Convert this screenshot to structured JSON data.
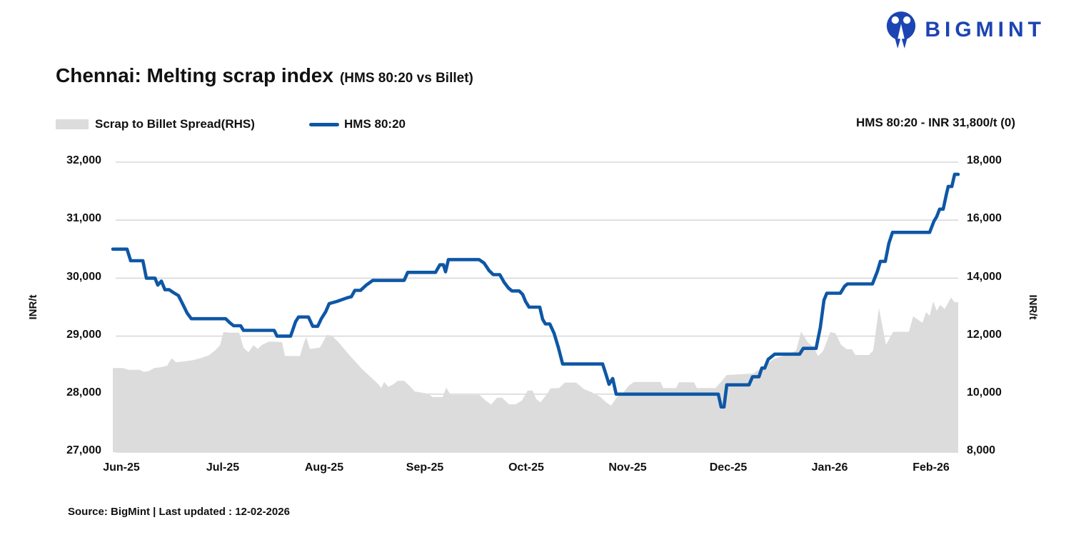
{
  "header": {
    "logo_text": "BIGMINT"
  },
  "title": {
    "main": "Chennai: Melting scrap index",
    "sub": "(HMS 80:20 vs Billet)"
  },
  "legend": {
    "items": [
      {
        "label": "Scrap to Billet Spread(RHS)"
      },
      {
        "label": "HMS 80:20"
      }
    ]
  },
  "annotation": {
    "text": "HMS 80:20 - INR 31,800/t (0)"
  },
  "footer": {
    "text": "Source: BigMint | Last updated : 12-02-2026"
  },
  "colors": {
    "line_blue": "#0e57a5",
    "area_gray": "#dcdcdc",
    "logo_blue": "#1c44b2",
    "gridline": "#d9d9d9"
  },
  "chart_data": {
    "type": "line",
    "title": "Chennai: Melting scrap index (HMS 80:20 vs Billet)",
    "x_axis": {
      "unit": "months_after_Jun-25_tick",
      "tick_labels": [
        "Jun-25",
        "Jul-25",
        "Aug-25",
        "Sep-25",
        "Oct-25",
        "Nov-25",
        "Dec-25",
        "Jan-26",
        "Feb-26"
      ]
    },
    "left_axis": {
      "label": "INR/t",
      "min": 27000,
      "max": 32000,
      "tick_values": [
        32000,
        31000,
        30000,
        29000,
        28000,
        27000
      ],
      "tick_labels": [
        "32,000",
        "31,000",
        "30,000",
        "29,000",
        "28,000",
        "27,000"
      ]
    },
    "right_axis": {
      "label": "INR/t",
      "min": 8000,
      "max": 18000,
      "tick_values": [
        18000,
        16000,
        14000,
        12000,
        10000,
        8000
      ],
      "tick_labels": [
        "18,000",
        "16,000",
        "14,000",
        "12,000",
        "10,000",
        "8,000"
      ]
    },
    "grid": true,
    "legend_position": "top-left",
    "current_value_note": "HMS 80:20 - INR 31,800/t (0)",
    "series": [
      {
        "name": "Scrap to Billet Spread(RHS)",
        "axis": "right",
        "type": "area",
        "color": "#dcdcdc",
        "points": [
          [
            -0.085,
            10900
          ],
          [
            0.014,
            10900
          ],
          [
            0.071,
            10840
          ],
          [
            0.183,
            10840
          ],
          [
            0.219,
            10770
          ],
          [
            0.268,
            10790
          ],
          [
            0.325,
            10900
          ],
          [
            0.395,
            10930
          ],
          [
            0.452,
            10980
          ],
          [
            0.48,
            11150
          ],
          [
            0.501,
            11240
          ],
          [
            0.536,
            11100
          ],
          [
            0.621,
            11130
          ],
          [
            0.706,
            11170
          ],
          [
            0.79,
            11250
          ],
          [
            0.861,
            11330
          ],
          [
            0.924,
            11500
          ],
          [
            0.974,
            11690
          ],
          [
            1.009,
            12140
          ],
          [
            1.072,
            12120
          ],
          [
            1.164,
            12120
          ],
          [
            1.206,
            11600
          ],
          [
            1.256,
            11440
          ],
          [
            1.305,
            11690
          ],
          [
            1.347,
            11560
          ],
          [
            1.39,
            11700
          ],
          [
            1.46,
            11810
          ],
          [
            1.587,
            11800
          ],
          [
            1.616,
            11320
          ],
          [
            1.764,
            11310
          ],
          [
            1.806,
            11800
          ],
          [
            1.827,
            11970
          ],
          [
            1.862,
            11560
          ],
          [
            1.961,
            11600
          ],
          [
            2.032,
            12050
          ],
          [
            2.081,
            12010
          ],
          [
            2.145,
            11790
          ],
          [
            2.257,
            11330
          ],
          [
            2.377,
            10870
          ],
          [
            2.49,
            10500
          ],
          [
            2.54,
            10340
          ],
          [
            2.568,
            10210
          ],
          [
            2.596,
            10420
          ],
          [
            2.638,
            10250
          ],
          [
            2.688,
            10340
          ],
          [
            2.73,
            10460
          ],
          [
            2.794,
            10460
          ],
          [
            2.843,
            10300
          ],
          [
            2.899,
            10090
          ],
          [
            3.026,
            10020
          ],
          [
            3.076,
            9900
          ],
          [
            3.175,
            9900
          ],
          [
            3.21,
            10230
          ],
          [
            3.252,
            9970
          ],
          [
            3.541,
            9970
          ],
          [
            3.605,
            9760
          ],
          [
            3.654,
            9640
          ],
          [
            3.711,
            9880
          ],
          [
            3.76,
            9880
          ],
          [
            3.831,
            9650
          ],
          [
            3.894,
            9650
          ],
          [
            3.958,
            9780
          ],
          [
            4.014,
            10120
          ],
          [
            4.063,
            10120
          ],
          [
            4.099,
            9830
          ],
          [
            4.141,
            9720
          ],
          [
            4.205,
            10000
          ],
          [
            4.24,
            10200
          ],
          [
            4.325,
            10210
          ],
          [
            4.381,
            10400
          ],
          [
            4.494,
            10400
          ],
          [
            4.572,
            10170
          ],
          [
            4.656,
            10050
          ],
          [
            4.734,
            9900
          ],
          [
            4.79,
            9720
          ],
          [
            4.839,
            9600
          ],
          [
            4.896,
            9900
          ],
          [
            4.945,
            10000
          ],
          [
            5.016,
            10300
          ],
          [
            5.065,
            10420
          ],
          [
            5.326,
            10420
          ],
          [
            5.354,
            10210
          ],
          [
            5.481,
            10210
          ],
          [
            5.509,
            10410
          ],
          [
            5.658,
            10410
          ],
          [
            5.686,
            10210
          ],
          [
            5.869,
            10210
          ],
          [
            5.919,
            10400
          ],
          [
            5.982,
            10660
          ],
          [
            6.243,
            10710
          ],
          [
            6.321,
            10900
          ],
          [
            6.455,
            11230
          ],
          [
            6.568,
            11350
          ],
          [
            6.667,
            11500
          ],
          [
            6.716,
            12150
          ],
          [
            6.78,
            11800
          ],
          [
            6.843,
            11600
          ],
          [
            6.885,
            11310
          ],
          [
            6.935,
            11500
          ],
          [
            7.005,
            12140
          ],
          [
            7.055,
            12100
          ],
          [
            7.111,
            11700
          ],
          [
            7.167,
            11550
          ],
          [
            7.217,
            11550
          ],
          [
            7.252,
            11350
          ],
          [
            7.386,
            11350
          ],
          [
            7.428,
            11500
          ],
          [
            7.485,
            12970
          ],
          [
            7.555,
            11700
          ],
          [
            7.626,
            12150
          ],
          [
            7.781,
            12150
          ],
          [
            7.823,
            12680
          ],
          [
            7.873,
            12560
          ],
          [
            7.915,
            12460
          ],
          [
            7.951,
            12830
          ],
          [
            7.986,
            12700
          ],
          [
            8.021,
            13200
          ],
          [
            8.056,
            12880
          ],
          [
            8.092,
            13080
          ],
          [
            8.134,
            12930
          ],
          [
            8.197,
            13330
          ],
          [
            8.233,
            13170
          ],
          [
            8.268,
            13170
          ]
        ]
      },
      {
        "name": "HMS 80:20",
        "axis": "left",
        "type": "line",
        "color": "#0e57a5",
        "points": [
          [
            -0.085,
            30500
          ],
          [
            0.056,
            30500
          ],
          [
            0.092,
            30300
          ],
          [
            0.212,
            30300
          ],
          [
            0.247,
            30000
          ],
          [
            0.332,
            30000
          ],
          [
            0.36,
            29880
          ],
          [
            0.395,
            29950
          ],
          [
            0.43,
            29800
          ],
          [
            0.473,
            29800
          ],
          [
            0.515,
            29750
          ],
          [
            0.564,
            29700
          ],
          [
            0.607,
            29550
          ],
          [
            0.649,
            29400
          ],
          [
            0.691,
            29300
          ],
          [
            1.03,
            29300
          ],
          [
            1.072,
            29230
          ],
          [
            1.108,
            29180
          ],
          [
            1.178,
            29180
          ],
          [
            1.206,
            29100
          ],
          [
            1.51,
            29100
          ],
          [
            1.538,
            29000
          ],
          [
            1.672,
            29000
          ],
          [
            1.721,
            29250
          ],
          [
            1.75,
            29330
          ],
          [
            1.848,
            29330
          ],
          [
            1.891,
            29170
          ],
          [
            1.94,
            29170
          ],
          [
            1.975,
            29300
          ],
          [
            2.018,
            29420
          ],
          [
            2.053,
            29560
          ],
          [
            2.131,
            29600
          ],
          [
            2.229,
            29660
          ],
          [
            2.272,
            29680
          ],
          [
            2.307,
            29790
          ],
          [
            2.363,
            29790
          ],
          [
            2.42,
            29880
          ],
          [
            2.483,
            29960
          ],
          [
            2.794,
            29960
          ],
          [
            2.829,
            30100
          ],
          [
            3.104,
            30100
          ],
          [
            3.147,
            30230
          ],
          [
            3.182,
            30230
          ],
          [
            3.203,
            30110
          ],
          [
            3.231,
            30320
          ],
          [
            3.534,
            30320
          ],
          [
            3.584,
            30260
          ],
          [
            3.633,
            30130
          ],
          [
            3.675,
            30060
          ],
          [
            3.739,
            30060
          ],
          [
            3.781,
            29930
          ],
          [
            3.824,
            29830
          ],
          [
            3.859,
            29780
          ],
          [
            3.93,
            29780
          ],
          [
            3.965,
            29720
          ],
          [
            3.993,
            29600
          ],
          [
            4.028,
            29500
          ],
          [
            4.134,
            29500
          ],
          [
            4.162,
            29290
          ],
          [
            4.19,
            29210
          ],
          [
            4.233,
            29210
          ],
          [
            4.275,
            29050
          ],
          [
            4.318,
            28800
          ],
          [
            4.36,
            28520
          ],
          [
            4.755,
            28520
          ],
          [
            4.79,
            28330
          ],
          [
            4.818,
            28170
          ],
          [
            4.854,
            28270
          ],
          [
            4.889,
            28000
          ],
          [
            5.898,
            28000
          ],
          [
            5.926,
            27780
          ],
          [
            5.954,
            27780
          ],
          [
            5.982,
            28160
          ],
          [
            6.201,
            28160
          ],
          [
            6.236,
            28300
          ],
          [
            6.3,
            28300
          ],
          [
            6.328,
            28450
          ],
          [
            6.356,
            28450
          ],
          [
            6.391,
            28600
          ],
          [
            6.455,
            28690
          ],
          [
            6.702,
            28690
          ],
          [
            6.737,
            28790
          ],
          [
            6.864,
            28790
          ],
          [
            6.906,
            29150
          ],
          [
            6.942,
            29620
          ],
          [
            6.97,
            29740
          ],
          [
            7.104,
            29740
          ],
          [
            7.146,
            29860
          ],
          [
            7.174,
            29900
          ],
          [
            7.421,
            29900
          ],
          [
            7.47,
            30120
          ],
          [
            7.499,
            30290
          ],
          [
            7.548,
            30290
          ],
          [
            7.583,
            30600
          ],
          [
            7.619,
            30790
          ],
          [
            7.986,
            30790
          ],
          [
            8.028,
            30980
          ],
          [
            8.056,
            31060
          ],
          [
            8.085,
            31190
          ],
          [
            8.12,
            31190
          ],
          [
            8.148,
            31420
          ],
          [
            8.169,
            31580
          ],
          [
            8.205,
            31580
          ],
          [
            8.233,
            31790
          ],
          [
            8.268,
            31790
          ]
        ]
      }
    ]
  }
}
